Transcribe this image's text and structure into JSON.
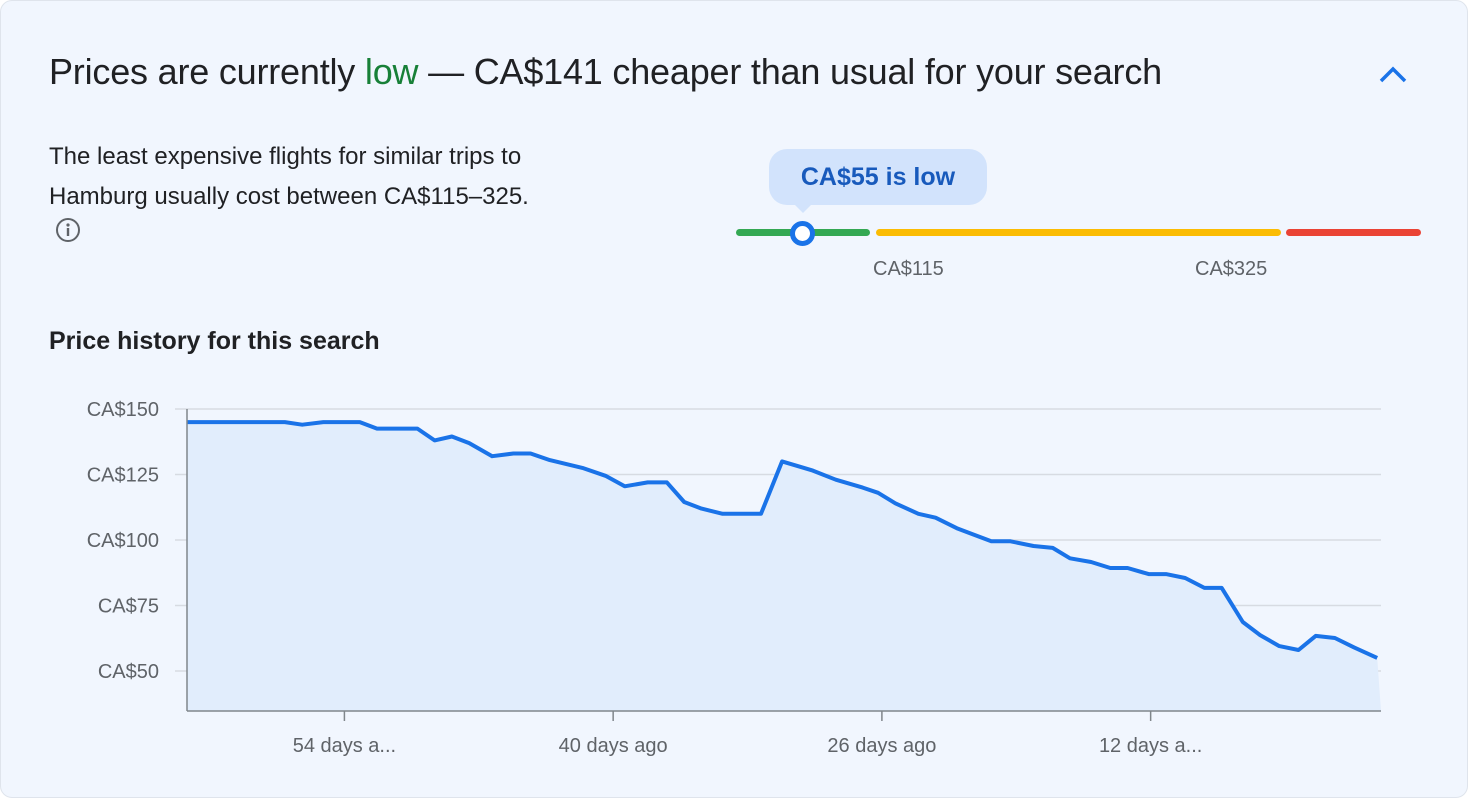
{
  "header": {
    "prefix": "Prices are currently ",
    "level": "low",
    "suffix": " — CA$141 cheaper than usual for your search",
    "collapse_icon": "chevron-up-icon"
  },
  "description": {
    "text": "The least expensive flights for similar trips to Hamburg usually cost between CA$115–325.",
    "info_icon": "info-icon"
  },
  "price_range": {
    "bubble": "CA$55 is low",
    "current_price": 55,
    "low_label": "CA$115",
    "high_label": "CA$325",
    "colors": {
      "low": "#34a853",
      "typical": "#fbbc04",
      "high": "#ea4335",
      "thumb": "#1a73e8"
    }
  },
  "chart_title": "Price history for this search",
  "chart_data": {
    "type": "area",
    "title": "Price history for this search",
    "xlabel": "",
    "ylabel": "",
    "ylim": [
      45,
      150
    ],
    "xlim": [
      62.2,
      0
    ],
    "grid": true,
    "y_ticks": [
      {
        "value": 150,
        "label": "CA$150"
      },
      {
        "value": 125,
        "label": "CA$125"
      },
      {
        "value": 100,
        "label": "CA$100"
      },
      {
        "value": 75,
        "label": "CA$75"
      },
      {
        "value": 50,
        "label": "CA$50"
      }
    ],
    "x_ticks": [
      {
        "value": 54,
        "label": "54 days a..."
      },
      {
        "value": 40,
        "label": "40 days ago"
      },
      {
        "value": 26,
        "label": "26 days ago"
      },
      {
        "value": 12,
        "label": "12 days a..."
      }
    ],
    "line_color": "#1a73e8",
    "fill_color": "#e1edfc",
    "points": [
      [
        62.2,
        145
      ],
      [
        57.1,
        145
      ],
      [
        56.2,
        144
      ],
      [
        55.1,
        145
      ],
      [
        53.2,
        145
      ],
      [
        52.3,
        142.5
      ],
      [
        50.2,
        142.5
      ],
      [
        49.3,
        138
      ],
      [
        48.4,
        139.5
      ],
      [
        47.5,
        137
      ],
      [
        46.3,
        132
      ],
      [
        45.2,
        133
      ],
      [
        44.3,
        133
      ],
      [
        43.3,
        130.5
      ],
      [
        41.6,
        127.5
      ],
      [
        40.4,
        124.5
      ],
      [
        39.4,
        120.5
      ],
      [
        38.2,
        122
      ],
      [
        37.2,
        122
      ],
      [
        36.3,
        114.5
      ],
      [
        35.4,
        112
      ],
      [
        34.3,
        110
      ],
      [
        32.3,
        110
      ],
      [
        31.2,
        130
      ],
      [
        30.3,
        128
      ],
      [
        29.6,
        126.5
      ],
      [
        28.4,
        123
      ],
      [
        27.0,
        120
      ],
      [
        26.2,
        118
      ],
      [
        25.3,
        114
      ],
      [
        24.1,
        110
      ],
      [
        23.2,
        108.5
      ],
      [
        22.1,
        104.5
      ],
      [
        21.2,
        102
      ],
      [
        20.3,
        99.5
      ],
      [
        19.3,
        99.5
      ],
      [
        18.1,
        97.7
      ],
      [
        17.1,
        97
      ],
      [
        16.2,
        93
      ],
      [
        15.1,
        91.6
      ],
      [
        14.1,
        89.3
      ],
      [
        13.2,
        89.3
      ],
      [
        12.1,
        87
      ],
      [
        11.2,
        87
      ],
      [
        10.2,
        85.5
      ],
      [
        9.2,
        81.7
      ],
      [
        8.3,
        81.7
      ],
      [
        7.2,
        68.7
      ],
      [
        6.3,
        63.7
      ],
      [
        5.3,
        59.5
      ],
      [
        4.3,
        58
      ],
      [
        3.4,
        63.4
      ],
      [
        2.4,
        62.6
      ],
      [
        1.4,
        59
      ],
      [
        0.2,
        55
      ]
    ]
  }
}
